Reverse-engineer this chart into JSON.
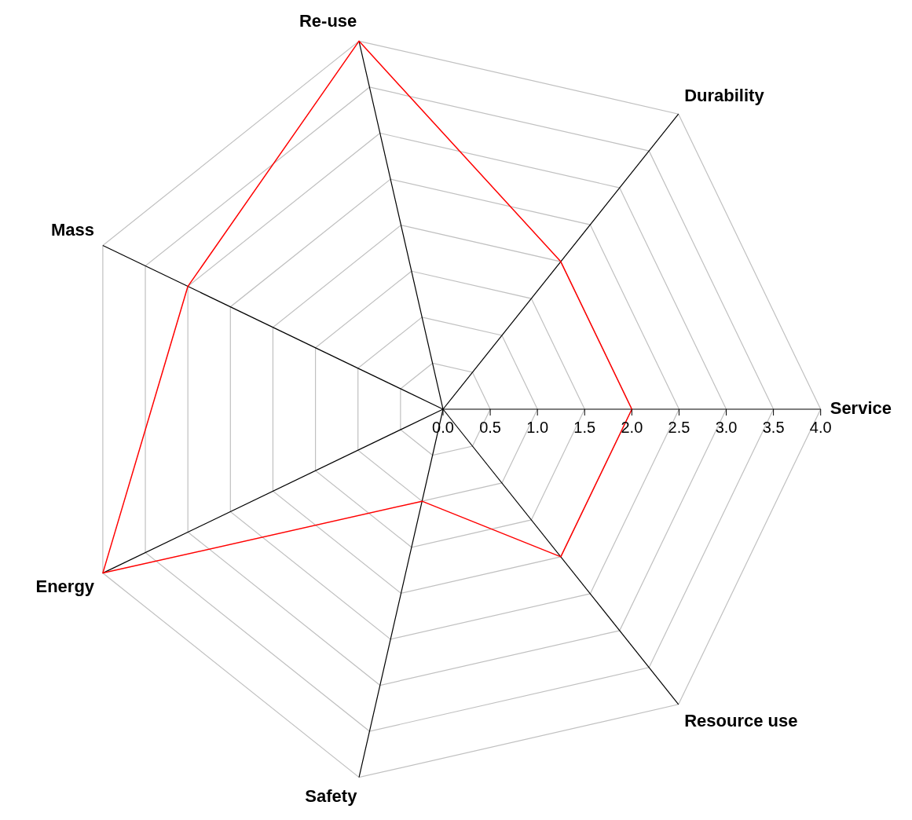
{
  "chart_data": {
    "type": "radar",
    "categories": [
      "Re-use",
      "Durability",
      "Service",
      "Resource use",
      "Safety",
      "Energy",
      "Mass"
    ],
    "series": [
      {
        "color": "#ff0000",
        "values": [
          4.0,
          2.0,
          2.0,
          2.0,
          1.0,
          4.0,
          3.0
        ]
      }
    ],
    "ylim": [
      0,
      4
    ],
    "yticks": [
      {
        "value": 0,
        "label": "0.0"
      },
      {
        "value": 0.5,
        "label": "0.5"
      },
      {
        "value": 1,
        "label": "1.0"
      },
      {
        "value": 1.5,
        "label": "1.5"
      },
      {
        "value": 2,
        "label": "2.0"
      },
      {
        "value": 2.5,
        "label": "2.5"
      },
      {
        "value": 3,
        "label": "3.0"
      },
      {
        "value": 3.5,
        "label": "3.5"
      },
      {
        "value": 4,
        "label": "4.0"
      }
    ],
    "grid": true,
    "legend": false,
    "marker": "none",
    "line_style": "solid"
  }
}
